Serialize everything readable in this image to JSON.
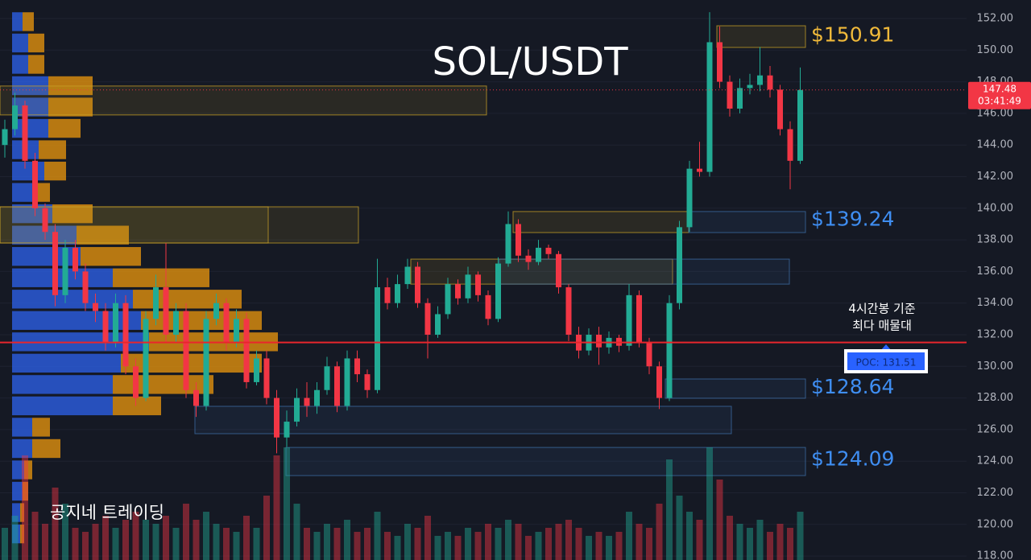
{
  "chart_data": {
    "type": "candlestick",
    "title": "SOL/USDT",
    "ylim": [
      117.75,
      153.17
    ],
    "yticks": [
      {
        "value": 118,
        "label": "118.00"
      },
      {
        "value": 120,
        "label": "120.00"
      },
      {
        "value": 122,
        "label": "122.00"
      },
      {
        "value": 124,
        "label": "124.00"
      },
      {
        "value": 126,
        "label": "126.00"
      },
      {
        "value": 128,
        "label": "128.00"
      },
      {
        "value": 130,
        "label": "130.00"
      },
      {
        "value": 132,
        "label": "132.00"
      },
      {
        "value": 134,
        "label": "134.00"
      },
      {
        "value": 136,
        "label": "136.00"
      },
      {
        "value": 138,
        "label": "138.00"
      },
      {
        "value": 140,
        "label": "140.00"
      },
      {
        "value": 142,
        "label": "142.00"
      },
      {
        "value": 144,
        "label": "144.00"
      },
      {
        "value": 146,
        "label": "146.00"
      },
      {
        "value": 148,
        "label": "148.00"
      },
      {
        "value": 150,
        "label": "150.00"
      },
      {
        "value": 152,
        "label": "152.00"
      }
    ],
    "grid": true,
    "up_color": "#22ab94",
    "down_color": "#f23645",
    "open": [
      144,
      145,
      146.5,
      143,
      140,
      138.5,
      134.5,
      137.5,
      136,
      134,
      133.5,
      131.5,
      134,
      130,
      128,
      133,
      135,
      132,
      133.5,
      128.5,
      127.5,
      133,
      134,
      131.5,
      133,
      129,
      130.5,
      128,
      125.5,
      126.5,
      128,
      127.5,
      128.5,
      130,
      127.5,
      130.5,
      129.5,
      128.5,
      135,
      134,
      135.2,
      136.3,
      134,
      132,
      133.3,
      135.2,
      134.3,
      135.8,
      134.5,
      133,
      136.5,
      139,
      137,
      136.6,
      137.5,
      137.1,
      135,
      132,
      131,
      132,
      131.2,
      131.8,
      131.3,
      134.5,
      131.5,
      130,
      128,
      134,
      138.8,
      142.5,
      142.3,
      150.5,
      148,
      146.3,
      147.6,
      147.8,
      148.4,
      147.5,
      145,
      143
    ],
    "high": [
      145.6,
      147.3,
      146.8,
      143.5,
      140.3,
      139,
      138,
      138,
      136.5,
      134.6,
      134,
      134.6,
      134.5,
      130.5,
      133.5,
      135.8,
      137.8,
      134,
      134,
      129,
      133.5,
      134.6,
      134.3,
      133.6,
      133.4,
      131,
      131,
      128.5,
      127.2,
      128.6,
      129,
      129,
      130.6,
      130.3,
      131,
      131,
      129.8,
      136.8,
      135.6,
      135.8,
      136.8,
      136.6,
      134.3,
      133.8,
      135.6,
      135.5,
      136.3,
      136,
      134.8,
      136.9,
      139.8,
      139.3,
      137.4,
      138,
      137.7,
      137.3,
      135.2,
      132.5,
      132.4,
      132.5,
      132.2,
      132,
      135.2,
      134.8,
      131.8,
      130.3,
      134.5,
      139.2,
      143,
      144.2,
      152.4,
      151.5,
      148.4,
      148.2,
      148.5,
      150.2,
      149,
      147.8,
      145.5,
      148.9
    ],
    "low": [
      143.2,
      144.6,
      142.5,
      139.5,
      138,
      133.8,
      134,
      135.5,
      133.5,
      132.8,
      131,
      131.2,
      129.5,
      127.5,
      127.8,
      132.6,
      131.5,
      131.5,
      128,
      126.8,
      127.2,
      132.6,
      131,
      131.2,
      128.6,
      128.8,
      127.6,
      124.5,
      124.9,
      126.2,
      126.8,
      127,
      128.2,
      127.1,
      127.2,
      129,
      128,
      128.3,
      133.6,
      133.7,
      134.9,
      133.7,
      130.5,
      131.8,
      133,
      133.9,
      134,
      134.1,
      132.6,
      132.8,
      136.3,
      136.6,
      136.1,
      136.4,
      136.8,
      134.6,
      131.6,
      130.5,
      130.7,
      130.1,
      130.8,
      130.9,
      131,
      131.2,
      129.5,
      127.3,
      127.8,
      133.6,
      138.5,
      142,
      142,
      147.6,
      145.8,
      146,
      147.2,
      147.4,
      147,
      144.6,
      141.2,
      142.8
    ],
    "close": [
      145,
      146.5,
      143,
      140,
      138.5,
      134.5,
      137.5,
      136,
      134,
      133.5,
      131.5,
      134,
      130,
      128,
      133,
      135,
      132,
      133.5,
      128.5,
      127.5,
      133,
      134,
      131.5,
      133,
      129,
      130.5,
      128,
      125.5,
      126.5,
      128,
      127.5,
      128.5,
      130,
      127.5,
      130.5,
      129.5,
      128.5,
      135,
      134,
      135.2,
      136.3,
      134,
      132,
      133.3,
      135.2,
      134.3,
      135.8,
      134.5,
      133,
      136.5,
      139,
      137,
      136.6,
      137.5,
      137.1,
      135,
      132,
      131,
      132,
      131.2,
      131.8,
      131.3,
      134.5,
      131.5,
      130,
      128,
      134,
      138.8,
      142.5,
      142.3,
      150.5,
      148,
      146.3,
      147.6,
      147.8,
      148.4,
      147.5,
      145,
      143,
      147.48
    ],
    "volume": [
      40,
      55,
      130,
      60,
      45,
      90,
      70,
      40,
      35,
      45,
      55,
      40,
      50,
      60,
      50,
      45,
      55,
      40,
      70,
      50,
      60,
      45,
      40,
      35,
      55,
      40,
      80,
      130,
      140,
      70,
      40,
      35,
      45,
      40,
      50,
      35,
      40,
      60,
      35,
      30,
      45,
      40,
      55,
      30,
      35,
      30,
      40,
      35,
      45,
      40,
      50,
      45,
      30,
      35,
      40,
      45,
      50,
      40,
      30,
      35,
      30,
      35,
      60,
      45,
      40,
      70,
      125,
      80,
      60,
      50,
      140,
      100,
      55,
      45,
      40,
      50,
      35,
      45,
      40,
      60
    ],
    "volume_profile": {
      "buy_color": "#2a5bd7",
      "sell_color": "#d4890f",
      "levels": [
        151.8,
        150.45,
        149.1,
        147.75,
        146.4,
        145.05,
        143.7,
        142.35,
        141.0,
        139.65,
        138.3,
        136.95,
        135.6,
        134.25,
        132.9,
        131.55,
        130.2,
        128.85,
        127.5,
        126.15,
        124.8,
        123.45,
        122.1,
        120.75,
        119.4
      ],
      "buy": [
        13,
        20,
        20,
        45,
        45,
        45,
        33,
        40,
        25,
        50,
        80,
        85,
        125,
        150,
        160,
        170,
        135,
        125,
        125,
        25,
        25,
        15,
        13,
        10,
        10
      ],
      "sell": [
        14,
        20,
        20,
        55,
        55,
        40,
        34,
        27,
        22,
        50,
        65,
        75,
        120,
        135,
        150,
        160,
        175,
        125,
        60,
        22,
        35,
        10,
        7,
        5,
        5
      ]
    },
    "zones": [
      {
        "top": 147.73,
        "bottom": 145.9,
        "color": "#c9a227"
      },
      {
        "top": 140.09,
        "bottom": 137.8,
        "color": "#c9a227"
      },
      {
        "top": 140.09,
        "bottom": 137.8,
        "color": "#c9a227"
      },
      {
        "top": 139.79,
        "bottom": 138.46,
        "color": "#c9a227"
      },
      {
        "top": 136.78,
        "bottom": 135.2,
        "color": "#c9a227"
      },
      {
        "top": 151.54,
        "bottom": 150.17,
        "color": "#c9a227"
      },
      {
        "top": 139.79,
        "bottom": 138.46,
        "color": "#3d6fa8"
      },
      {
        "top": 136.78,
        "bottom": 135.2,
        "color": "#3d6fa8"
      },
      {
        "top": 129.2,
        "bottom": 127.98,
        "color": "#3d6fa8"
      },
      {
        "top": 127.47,
        "bottom": 125.74,
        "color": "#3d6fa8"
      },
      {
        "top": 124.87,
        "bottom": 123.09,
        "color": "#3d6fa8"
      }
    ],
    "price_labels": [
      {
        "value": 150.91,
        "label": "$150.91",
        "color": "#f0b93a"
      },
      {
        "value": 139.24,
        "label": "$139.24",
        "color": "#3f8ef2"
      },
      {
        "value": 128.64,
        "label": "$128.64",
        "color": "#3f8ef2"
      },
      {
        "value": 124.09,
        "label": "$124.09",
        "color": "#3f8ef2"
      }
    ],
    "poc": {
      "value": 131.51,
      "label": "POC: 131.51",
      "color": "#e8262c"
    },
    "poc_note": [
      "4시간봉 기준",
      "최다 매물대"
    ],
    "current_price": {
      "value": 147.48,
      "label": "147.48",
      "countdown": "03:41:49"
    },
    "watermark": "공지네 트레이딩"
  }
}
